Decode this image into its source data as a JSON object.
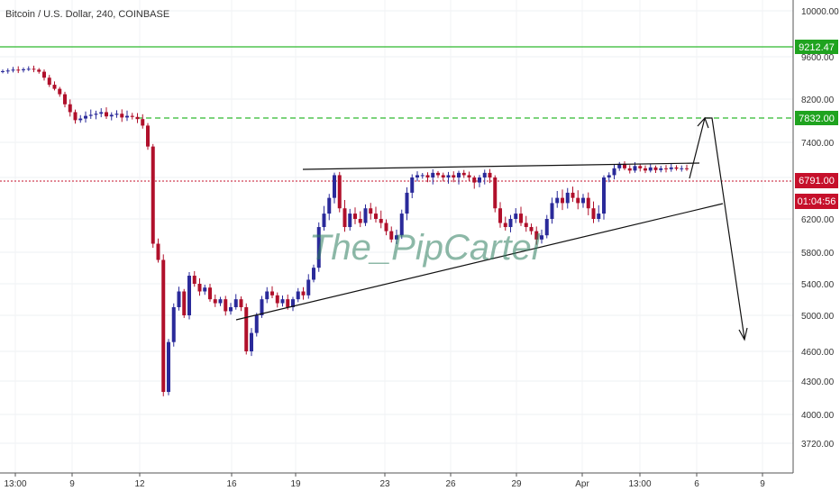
{
  "header": {
    "title": "Bitcoin / U.S. Dollar, 240, COINBASE"
  },
  "watermark": "The_PipCartel",
  "price_labels": {
    "resistance": "9212.47",
    "target": "7832.00",
    "last": "6791.00",
    "countdown": "01:04:56"
  },
  "colors": {
    "up": "#2a2a9a",
    "down": "#b0102b",
    "resistance": "#2db92d",
    "target": "#1fa31f",
    "last": "#c6102b",
    "watermark": "#2e7d5e",
    "axis_text": "#333333"
  },
  "chart_data": {
    "type": "candlestick",
    "title": "Bitcoin / U.S. Dollar, 240, COINBASE",
    "xlabel": "",
    "ylabel": "",
    "y_scale": "log",
    "ylim": [
      3600,
      10400
    ],
    "y_ticks": [
      "10000.00",
      "9600.00",
      "8200.00",
      "7400.00",
      "6600.00",
      "6200.00",
      "5800.00",
      "5400.00",
      "5000.00",
      "4600.00",
      "4300.00",
      "4000.00",
      "3720.00"
    ],
    "x_ticks": [
      "13:00",
      "9",
      "12",
      "16",
      "19",
      "23",
      "26",
      "29",
      "Apr",
      "13:00",
      "6",
      "9"
    ],
    "grid": true,
    "horizontal_lines": [
      {
        "label": "9212.47",
        "value": 9212.47,
        "style": "solid",
        "color": "#2db92d"
      },
      {
        "label": "7832.00",
        "value": 7832.0,
        "style": "dashed",
        "color": "#2db92d"
      },
      {
        "label": "6791.00",
        "value": 6791.0,
        "style": "dotted",
        "color": "#c6102b"
      }
    ],
    "close_path": [
      9100,
      9120,
      9150,
      9130,
      9160,
      9180,
      9150,
      9080,
      8880,
      8650,
      8520,
      8350,
      8100,
      7950,
      7800,
      7830,
      7880,
      7900,
      7920,
      7950,
      7870,
      7900,
      7920,
      7850,
      7880,
      7860,
      7820,
      7700,
      7300,
      5900,
      5700,
      4200,
      4700,
      5100,
      5300,
      5000,
      5500,
      5400,
      5300,
      5350,
      5200,
      5150,
      5200,
      5050,
      5100,
      5200,
      5100,
      4600,
      4800,
      5000,
      5200,
      5300,
      5250,
      5150,
      5200,
      5100,
      5200,
      5300,
      5250,
      5450,
      5600,
      6100,
      6250,
      6400,
      6650,
      6300,
      6100,
      6250,
      6200,
      6150,
      6300,
      6250,
      6200,
      6150,
      6050,
      5950,
      6000,
      6250,
      6450,
      6600,
      6650,
      6650,
      6600,
      6700,
      6650,
      6600,
      6650,
      6600,
      6700,
      6650,
      6600,
      6550,
      6600,
      6700,
      6600,
      6300,
      6150,
      6100,
      6200,
      6250,
      6150,
      6100,
      6050,
      5950,
      6000,
      6200,
      6350,
      6400,
      6350,
      6450,
      6400,
      6350,
      6400,
      6300,
      6200,
      6250,
      6600,
      6650,
      6800,
      6900,
      6800,
      6750,
      6850,
      6800,
      6750,
      6820,
      6760,
      6800,
      6780,
      6820,
      6790,
      6800,
      6790
    ]
  }
}
